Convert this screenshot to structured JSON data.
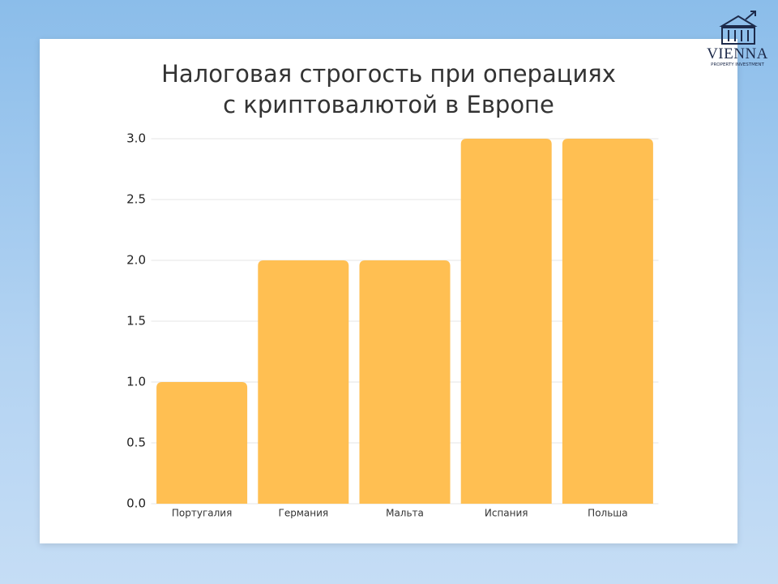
{
  "logo": {
    "name": "VIENNA",
    "subtitle": "PROPERTY INVESTMENT"
  },
  "chart_data": {
    "type": "bar",
    "title": "Налоговая строгость при операциях\nс криптовалютой в Европе",
    "categories": [
      "Португалия",
      "Германия",
      "Мальта",
      "Испания",
      "Польша"
    ],
    "values": [
      1,
      2,
      2,
      3,
      3
    ],
    "color": "#ffbf52",
    "ylim": [
      0,
      3
    ],
    "yticks": [
      {
        "value": 0,
        "label": "0.0"
      },
      0.5,
      {
        "value": 1,
        "label": "1.0"
      },
      1.5,
      {
        "value": 2,
        "label": "2.0"
      },
      2.5,
      {
        "value": 3,
        "label": "3.0"
      }
    ],
    "grid": true
  }
}
